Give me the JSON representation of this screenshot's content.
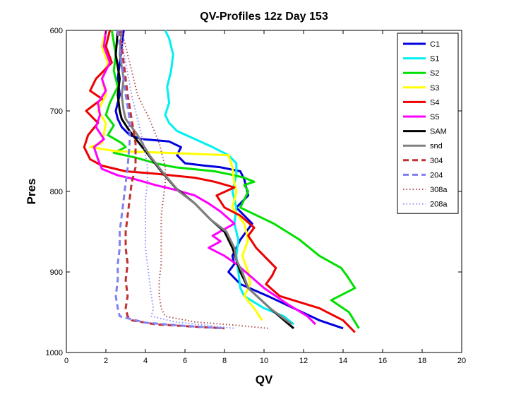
{
  "chart_data": {
    "type": "line",
    "title": "QV-Profiles 12z Day 153",
    "xlabel": "QV",
    "ylabel": "Pres",
    "xlim": [
      0,
      20
    ],
    "ylim": [
      600,
      1000
    ],
    "y_reversed": true,
    "grid": false,
    "legend_position": "top-right",
    "x_ticks": [
      0,
      2,
      4,
      6,
      8,
      10,
      12,
      14,
      16,
      18,
      20
    ],
    "y_ticks": [
      600,
      700,
      800,
      900,
      1000
    ],
    "series": [
      {
        "name": "C1",
        "color": "#0000dd",
        "dash": "solid",
        "x": [
          2.9,
          2.8,
          2.7,
          2.6,
          2.7,
          2.5,
          2.6,
          2.8,
          3.2,
          3.8,
          5.2,
          5.8,
          5.6,
          6.0,
          7.0,
          7.8,
          8.8,
          9.0,
          9.2,
          8.6,
          9.4,
          8.8,
          8.4,
          8.5,
          8.2,
          8.8,
          10.2,
          11.5,
          12.8,
          14.0
        ],
        "y": [
          600,
          620,
          640,
          660,
          680,
          700,
          710,
          720,
          730,
          735,
          738,
          745,
          755,
          765,
          768,
          770,
          775,
          785,
          805,
          820,
          840,
          860,
          880,
          890,
          900,
          915,
          930,
          945,
          960,
          970
        ]
      },
      {
        "name": "S1",
        "color": "#00f0f0",
        "dash": "solid",
        "x": [
          5.0,
          5.2,
          5.4,
          5.3,
          5.1,
          5.2,
          5.0,
          5.2,
          5.6,
          6.5,
          7.4,
          8.2,
          8.6,
          8.6,
          8.4,
          8.6,
          8.5,
          8.7,
          8.6,
          8.7,
          8.8,
          9.0,
          10.0,
          11.0,
          11.5
        ],
        "y": [
          600,
          610,
          630,
          650,
          670,
          690,
          705,
          715,
          725,
          735,
          745,
          755,
          765,
          780,
          800,
          820,
          840,
          860,
          880,
          900,
          920,
          930,
          945,
          955,
          965
        ]
      },
      {
        "name": "S2",
        "color": "#00e000",
        "dash": "solid",
        "x": [
          2.3,
          2.4,
          2.5,
          2.4,
          2.6,
          2.2,
          2.0,
          2.4,
          2.1,
          2.8,
          3.0,
          2.4,
          3.5,
          4.5,
          5.5,
          7.5,
          8.5,
          9.0,
          9.5,
          9.0,
          9.2,
          8.8,
          10.5,
          11.8,
          12.8,
          13.9,
          14.2,
          14.6,
          13.4,
          14.3,
          14.8
        ],
        "y": [
          600,
          615,
          630,
          650,
          670,
          690,
          705,
          718,
          730,
          740,
          745,
          752,
          758,
          765,
          770,
          775,
          780,
          783,
          788,
          792,
          800,
          820,
          840,
          860,
          880,
          895,
          905,
          920,
          935,
          950,
          970
        ]
      },
      {
        "name": "S3",
        "color": "#ffff00",
        "dash": "solid",
        "x": [
          2.0,
          1.8,
          2.1,
          1.8,
          2.0,
          1.6,
          2.0,
          1.9,
          1.8,
          1.2,
          2.5,
          5.0,
          8.2,
          8.4,
          8.5,
          8.6,
          8.4,
          9.0,
          9.2,
          8.9,
          9.2,
          9.3,
          9.0,
          9.5,
          9.9
        ],
        "y": [
          600,
          620,
          640,
          660,
          680,
          700,
          715,
          728,
          740,
          745,
          750,
          752,
          755,
          770,
          790,
          800,
          820,
          840,
          860,
          880,
          900,
          915,
          930,
          945,
          960
        ]
      },
      {
        "name": "S4",
        "color": "#ee0000",
        "dash": "solid",
        "x": [
          2.2,
          2.0,
          2.3,
          1.5,
          1.2,
          1.8,
          1.0,
          1.6,
          1.1,
          0.9,
          1.2,
          1.8,
          3.0,
          4.5,
          6.5,
          7.5,
          8.5,
          7.6,
          8.0,
          8.8,
          9.5,
          9.2,
          9.6,
          10.2,
          10.6,
          10.4,
          10.1,
          10.8,
          12.8,
          14.0,
          14.6
        ],
        "y": [
          600,
          620,
          640,
          660,
          675,
          685,
          700,
          715,
          730,
          745,
          760,
          768,
          775,
          778,
          783,
          788,
          795,
          805,
          820,
          830,
          845,
          855,
          870,
          885,
          895,
          905,
          915,
          930,
          945,
          960,
          975
        ]
      },
      {
        "name": "S5",
        "color": "#ff00ff",
        "dash": "solid",
        "x": [
          2.0,
          1.9,
          2.2,
          1.8,
          2.0,
          1.6,
          1.7,
          1.5,
          1.9,
          1.4,
          1.6,
          1.8,
          2.6,
          3.5,
          4.5,
          5.5,
          6.5,
          7.2,
          7.8,
          8.5,
          7.4,
          7.8,
          7.2,
          8.0,
          8.6,
          10.0,
          11.2,
          12.2,
          12.6
        ],
        "y": [
          600,
          620,
          640,
          660,
          675,
          690,
          705,
          720,
          735,
          745,
          760,
          772,
          780,
          785,
          792,
          798,
          805,
          815,
          825,
          840,
          855,
          862,
          870,
          880,
          890,
          920,
          940,
          955,
          965
        ]
      },
      {
        "name": "SAM",
        "color": "#000000",
        "dash": "solid",
        "x": [
          2.6,
          2.5,
          2.7,
          2.6,
          2.7,
          2.8,
          3.2,
          4.0,
          4.8,
          5.5,
          6.5,
          7.3,
          8.0,
          8.4,
          8.6,
          8.8,
          9.2,
          10.3,
          11.5
        ],
        "y": [
          600,
          630,
          660,
          680,
          700,
          710,
          725,
          750,
          775,
          795,
          815,
          835,
          850,
          870,
          885,
          900,
          920,
          945,
          970
        ]
      },
      {
        "name": "snd",
        "color": "#808080",
        "dash": "solid",
        "x": [
          2.8,
          2.7,
          2.9,
          2.8,
          2.9,
          3.0,
          3.6,
          4.2,
          5.0,
          5.7,
          6.5,
          7.3,
          8.1,
          8.5,
          8.6,
          8.9,
          9.2,
          10.3,
          11.4
        ],
        "y": [
          600,
          630,
          660,
          680,
          700,
          710,
          730,
          755,
          780,
          800,
          815,
          835,
          850,
          870,
          885,
          900,
          920,
          945,
          965
        ]
      },
      {
        "name": "304",
        "color": "#c03030",
        "dash": "dash",
        "x": [
          2.7,
          2.9,
          3.1,
          3.3,
          3.5,
          3.5,
          3.3,
          3.2,
          3.1,
          3.0,
          3.0,
          3.1,
          3.0,
          3.1,
          3.0,
          3.1,
          3.3,
          4.5,
          6.5,
          8.0
        ],
        "y": [
          600,
          640,
          680,
          710,
          740,
          770,
          790,
          810,
          830,
          850,
          870,
          890,
          910,
          930,
          945,
          955,
          960,
          965,
          968,
          970
        ]
      },
      {
        "name": "204",
        "color": "#8080f0",
        "dash": "dash",
        "x": [
          2.6,
          2.8,
          3.0,
          3.2,
          3.2,
          3.1,
          3.0,
          2.9,
          2.8,
          2.7,
          2.7,
          2.6,
          2.6,
          2.5,
          2.6,
          2.7,
          4.0,
          6.0,
          8.0
        ],
        "y": [
          600,
          640,
          680,
          710,
          740,
          770,
          790,
          810,
          830,
          850,
          870,
          890,
          910,
          930,
          945,
          955,
          963,
          967,
          970
        ]
      },
      {
        "name": "308a",
        "color": "#b05050",
        "dash": "dot",
        "x": [
          2.8,
          3.2,
          3.6,
          4.2,
          4.7,
          5.0,
          5.0,
          4.9,
          4.8,
          4.8,
          4.8,
          4.8,
          4.7,
          4.7,
          4.8,
          5.0,
          6.5,
          8.5,
          10.2
        ],
        "y": [
          600,
          640,
          680,
          710,
          740,
          770,
          790,
          810,
          830,
          850,
          870,
          890,
          910,
          930,
          945,
          955,
          962,
          966,
          970
        ]
      },
      {
        "name": "208a",
        "color": "#9090ff",
        "dash": "dot",
        "x": [
          2.7,
          3.0,
          3.3,
          3.6,
          3.9,
          4.1,
          4.1,
          4.0,
          4.0,
          4.0,
          4.0,
          4.1,
          4.2,
          4.3,
          4.4,
          4.3,
          5.5,
          7.0,
          8.5
        ],
        "y": [
          600,
          640,
          680,
          710,
          740,
          770,
          790,
          810,
          830,
          850,
          870,
          890,
          910,
          930,
          945,
          955,
          962,
          966,
          970
        ]
      }
    ]
  }
}
